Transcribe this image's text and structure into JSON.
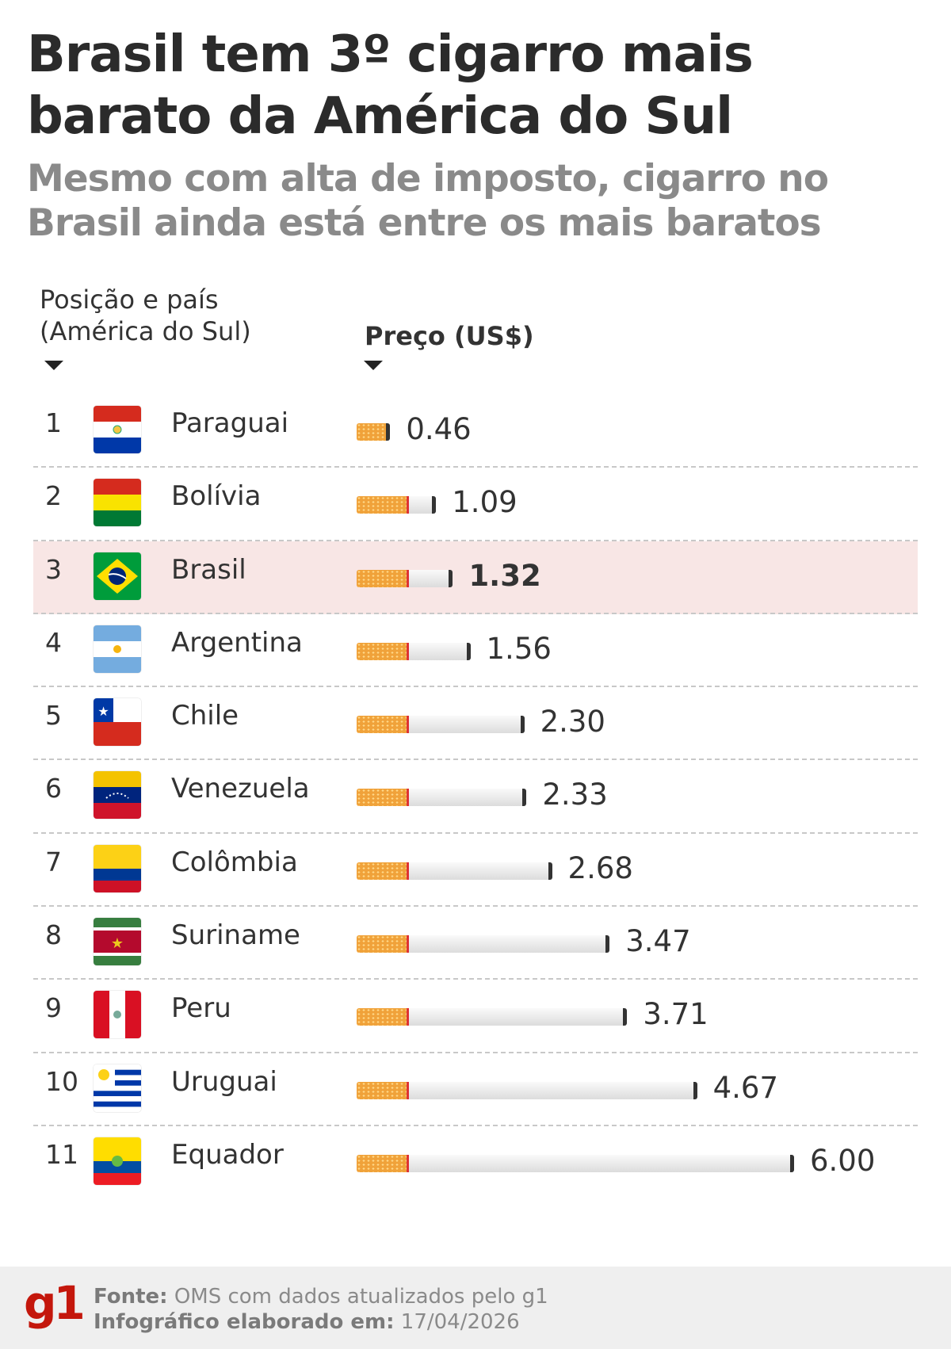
{
  "title": "Brasil tem 3º cigarro mais barato da América do Sul",
  "subtitle": "Mesmo com alta de imposto, cigarro no Brasil ainda está entre os mais baratos",
  "chart_data": {
    "type": "bar",
    "orientation": "horizontal",
    "col_headers": {
      "country_line1": "Posição e país",
      "country_line2": "(América do Sul)",
      "price": "Preço (US$)"
    },
    "highlight": "Brasil",
    "highlight_color": "#f8e6e5",
    "rows": [
      {
        "pos": "1",
        "country": "Paraguai",
        "value": 0.46,
        "label": "0.46",
        "flag": "paraguay"
      },
      {
        "pos": "2",
        "country": "Bolívia",
        "value": 1.09,
        "label": "1.09",
        "flag": "bolivia"
      },
      {
        "pos": "3",
        "country": "Brasil",
        "value": 1.32,
        "label": "1.32",
        "flag": "brazil"
      },
      {
        "pos": "4",
        "country": "Argentina",
        "value": 1.56,
        "label": "1.56",
        "flag": "argentina"
      },
      {
        "pos": "5",
        "country": "Chile",
        "value": 2.3,
        "label": "2.30",
        "flag": "chile"
      },
      {
        "pos": "6",
        "country": "Venezuela",
        "value": 2.33,
        "label": "2.33",
        "flag": "venezuela"
      },
      {
        "pos": "7",
        "country": "Colômbia",
        "value": 2.68,
        "label": "2.68",
        "flag": "colombia"
      },
      {
        "pos": "8",
        "country": "Suriname",
        "value": 3.47,
        "label": "3.47",
        "flag": "suriname"
      },
      {
        "pos": "9",
        "country": "Peru",
        "value": 3.71,
        "label": "3.71",
        "flag": "peru"
      },
      {
        "pos": "10",
        "country": "Uruguai",
        "value": 4.67,
        "label": "4.67",
        "flag": "uruguay"
      },
      {
        "pos": "11",
        "country": "Equador",
        "value": 6.0,
        "label": "6.00",
        "flag": "ecuador"
      }
    ]
  },
  "footer": {
    "logo": "g1",
    "source_label": "Fonte:",
    "source": "OMS com dados atualizados pelo g1",
    "date_label": "Infográfico elaborado em:",
    "date": "17/04/2026"
  }
}
